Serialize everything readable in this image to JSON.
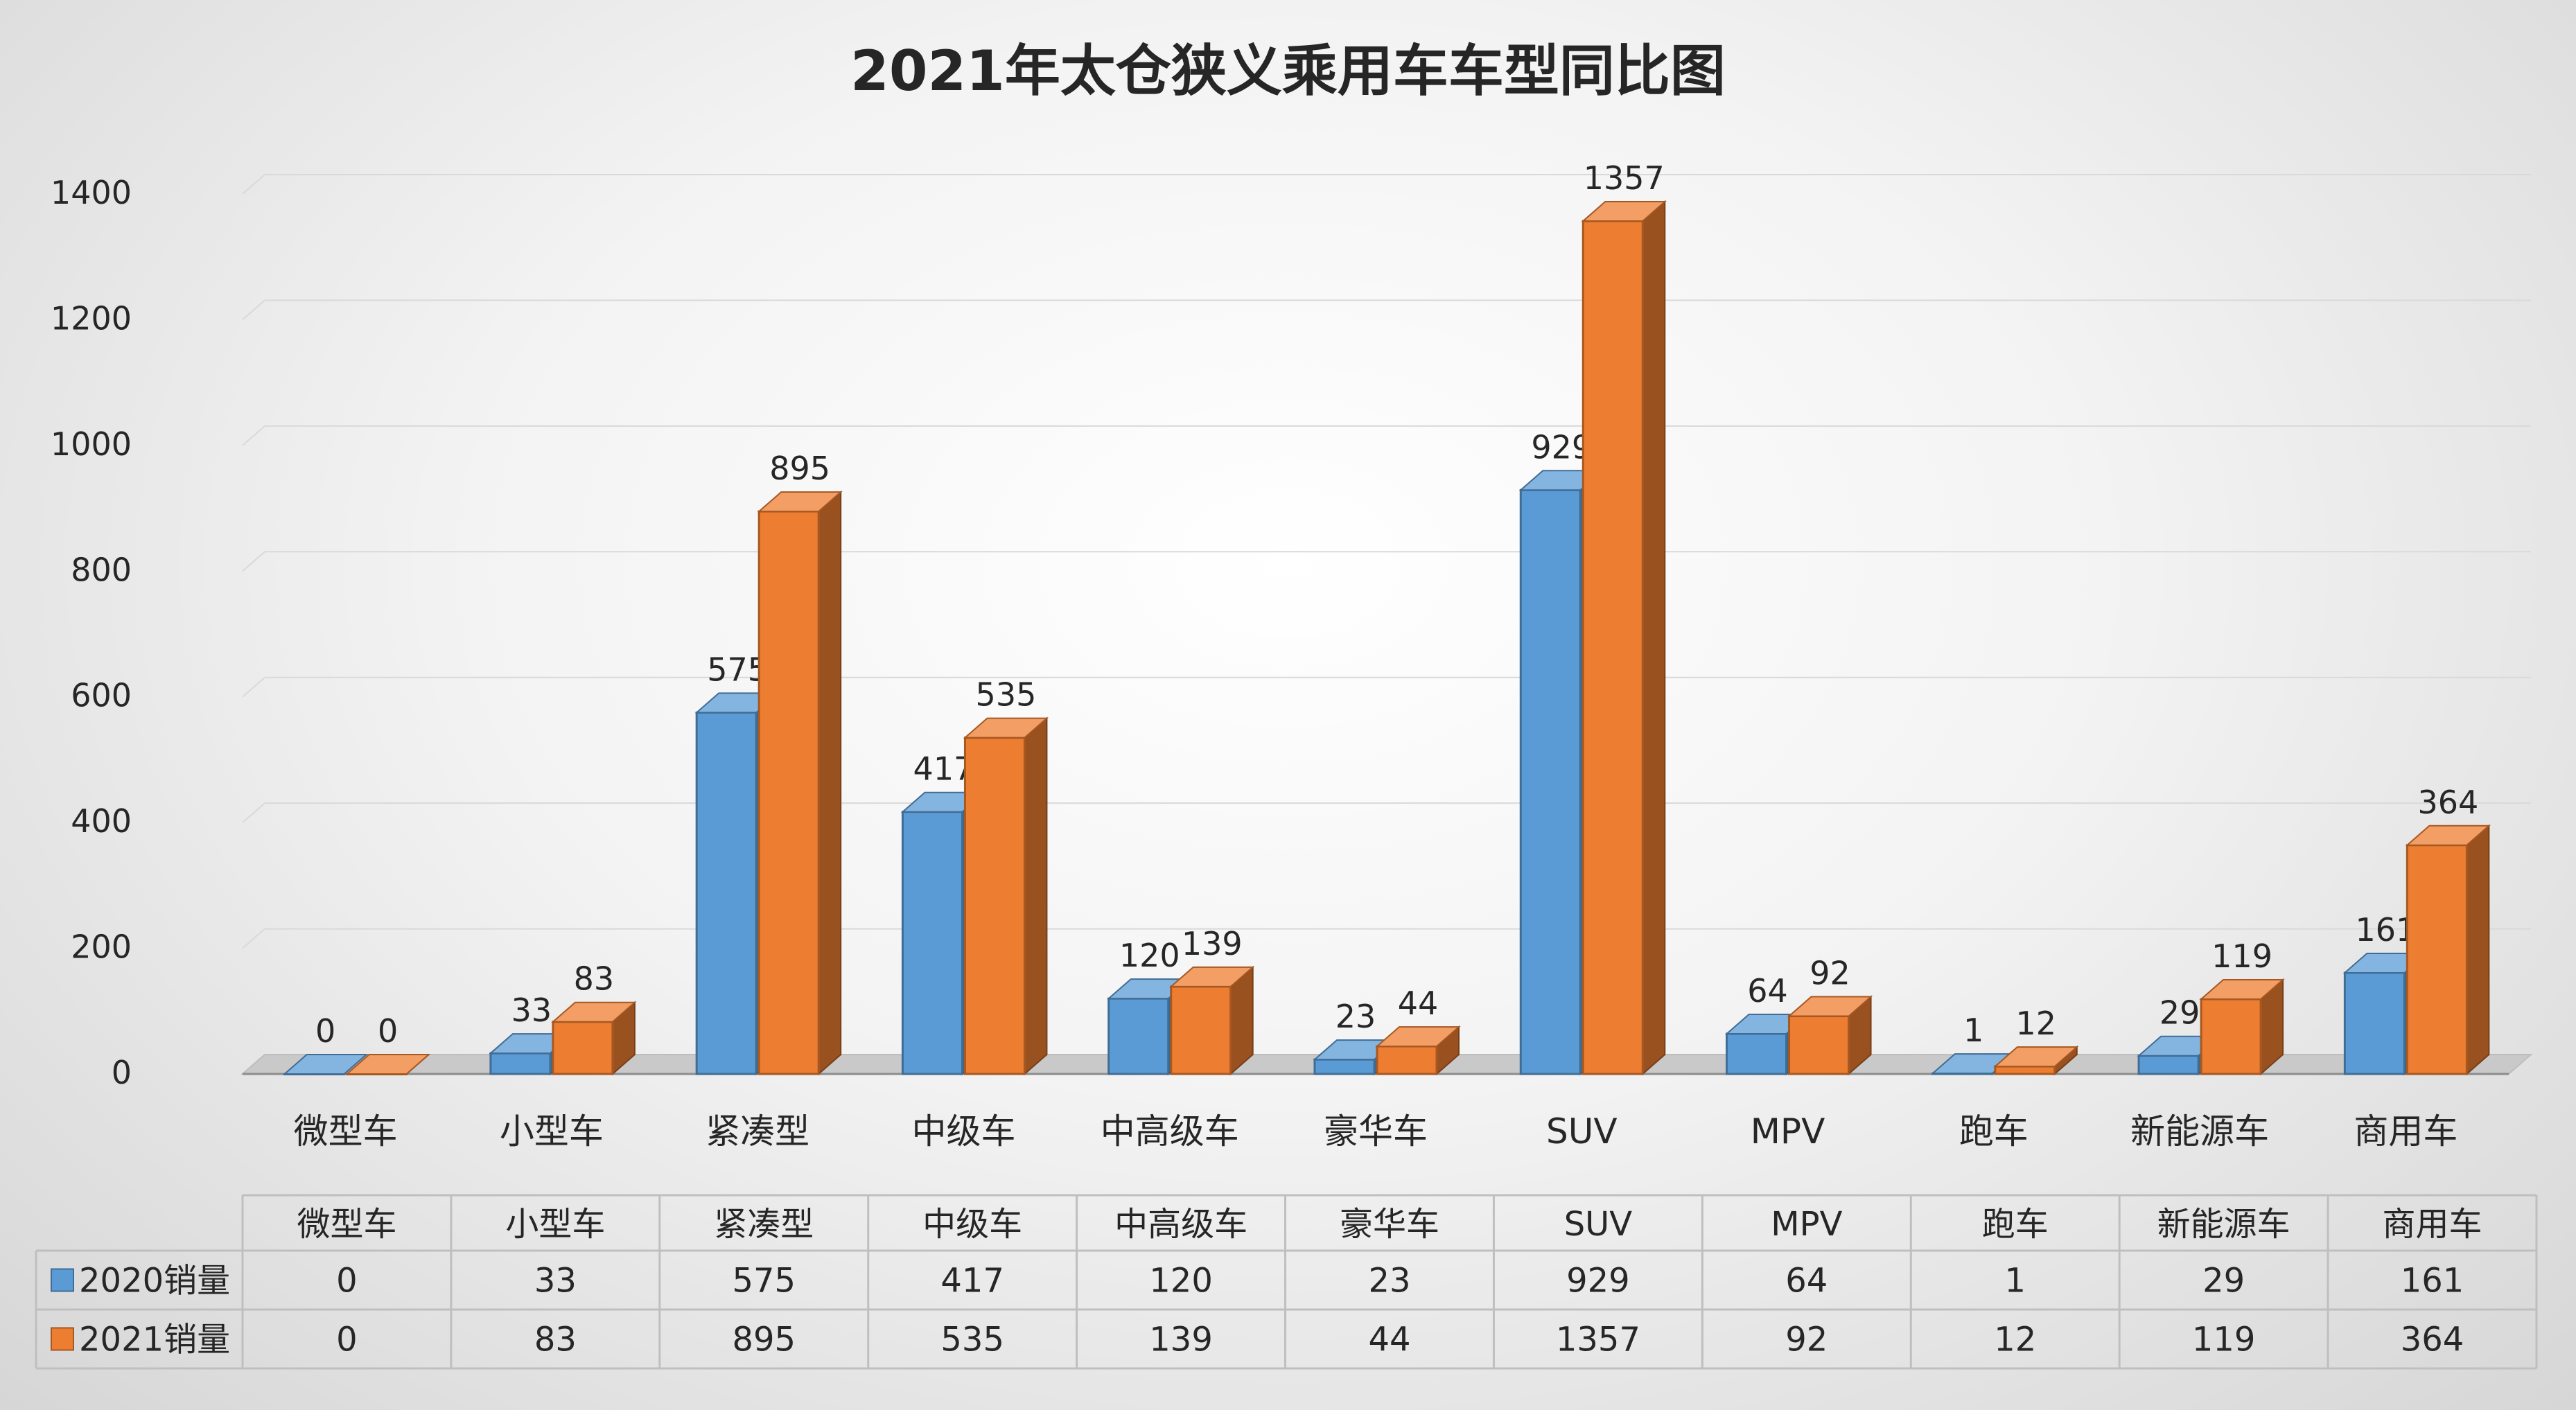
{
  "chart_data": {
    "type": "bar",
    "title": "2021年太仓狭义乘用车车型同比图",
    "categories": [
      "微型车",
      "小型车",
      "紧凑型",
      "中级车",
      "中高级车",
      "豪华车",
      "SUV",
      "MPV",
      "跑车",
      "新能源车",
      "商用车"
    ],
    "series": [
      {
        "name": "2020销量",
        "values": [
          0,
          33,
          575,
          417,
          120,
          23,
          929,
          64,
          1,
          29,
          161
        ],
        "color": "#5B9BD5"
      },
      {
        "name": "2021销量",
        "values": [
          0,
          83,
          895,
          535,
          139,
          44,
          1357,
          92,
          12,
          119,
          364
        ],
        "color": "#ED7D31"
      }
    ],
    "ylim": [
      0,
      1400
    ],
    "yticks": [
      "0",
      "200",
      "400",
      "600",
      "800",
      "1000",
      "1200",
      "1400"
    ],
    "grid": true,
    "legend": "data-table",
    "three_d": true
  }
}
